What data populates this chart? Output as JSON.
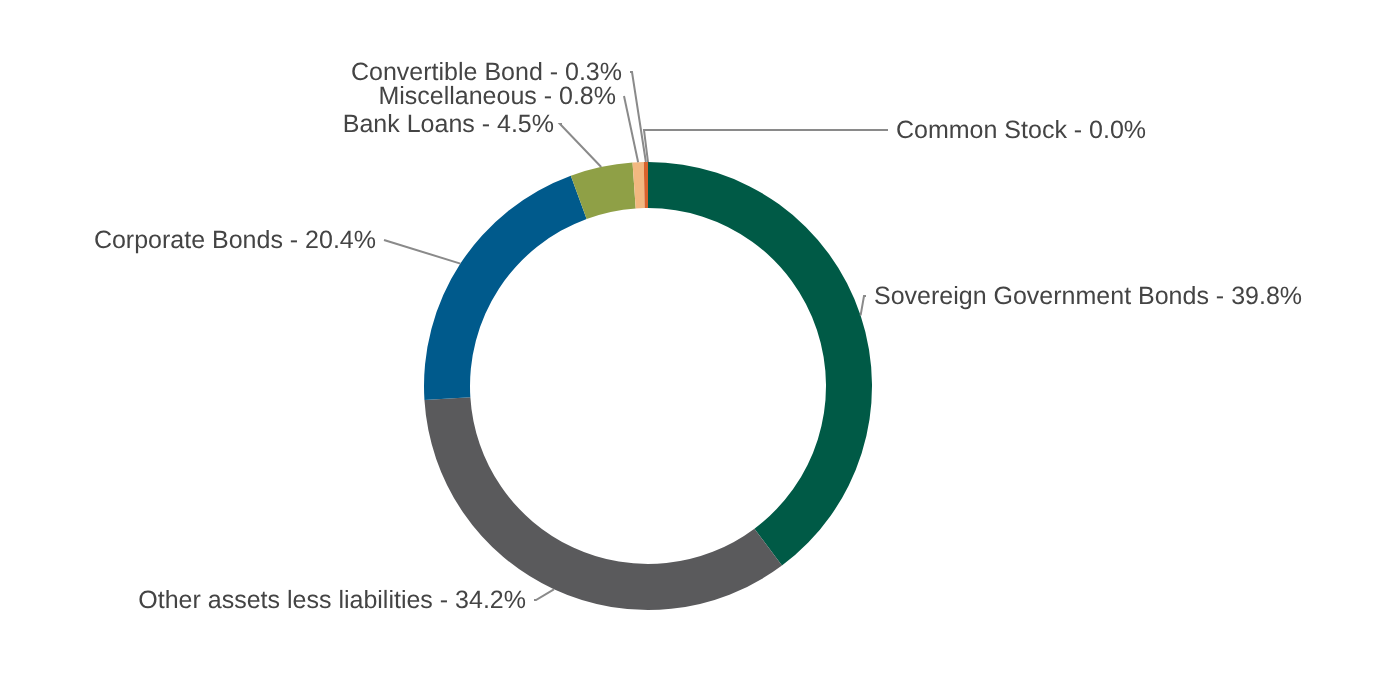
{
  "chart_data": {
    "type": "donut",
    "categories": [
      "Common Stock -",
      "Sovereign Government Bonds -",
      "Other assets less liabilities -",
      "Corporate Bonds -",
      "Bank Loans -",
      "Miscellaneous -",
      "Convertible Bond -"
    ],
    "values": [
      0,
      39.8,
      34.2,
      20.4,
      4.5,
      0.8,
      0.3
    ],
    "value_labels": [
      "0.0%",
      "39.8%",
      "34.2%",
      "20.4%",
      "4.5%",
      "0.8%",
      "0.3%"
    ],
    "colors": [
      "#e06c2c",
      "#005a46",
      "#5a5a5c",
      "#005a8c",
      "#8fa046",
      "#f2b880",
      "#d9622b"
    ]
  }
}
